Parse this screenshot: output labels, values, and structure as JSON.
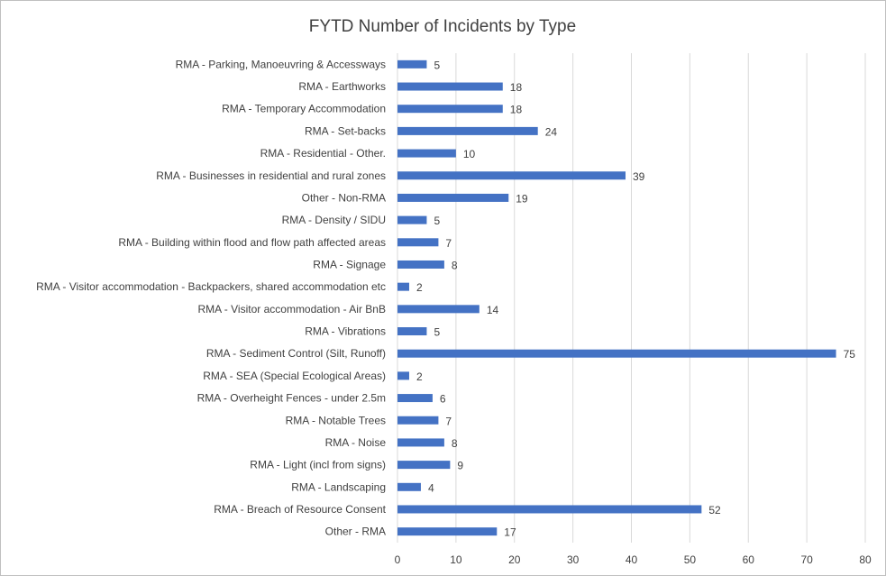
{
  "chart_data": {
    "type": "bar",
    "orientation": "horizontal",
    "title": "FYTD Number of Incidents by Type",
    "xlabel": "",
    "ylabel": "",
    "xlim": [
      0,
      80
    ],
    "x_ticks": [
      0,
      10,
      20,
      30,
      40,
      50,
      60,
      70,
      80
    ],
    "grid": "vertical",
    "legend": "none",
    "bar_color": "#4472c4",
    "categories": [
      "RMA - Parking, Manoeuvring & Accessways",
      "RMA - Earthworks",
      "RMA - Temporary Accommodation",
      "RMA - Set-backs",
      "RMA - Residential - Other.",
      "RMA - Businesses in residential and rural zones",
      "Other - Non-RMA",
      "RMA - Density / SIDU",
      "RMA - Building within flood and flow path affected areas",
      "RMA - Signage",
      "RMA - Visitor accommodation - Backpackers, shared accommodation etc",
      "RMA - Visitor accommodation - Air BnB",
      "RMA - Vibrations",
      "RMA - Sediment Control (Silt, Runoff)",
      "RMA - SEA (Special Ecological Areas)",
      "RMA - Overheight Fences - under 2.5m",
      "RMA - Notable Trees",
      "RMA - Noise",
      "RMA - Light (incl from signs)",
      "RMA - Landscaping",
      "RMA - Breach of Resource Consent",
      "Other - RMA"
    ],
    "values": [
      5,
      18,
      18,
      24,
      10,
      39,
      19,
      5,
      7,
      8,
      2,
      14,
      5,
      75,
      2,
      6,
      7,
      8,
      9,
      4,
      52,
      17
    ]
  }
}
